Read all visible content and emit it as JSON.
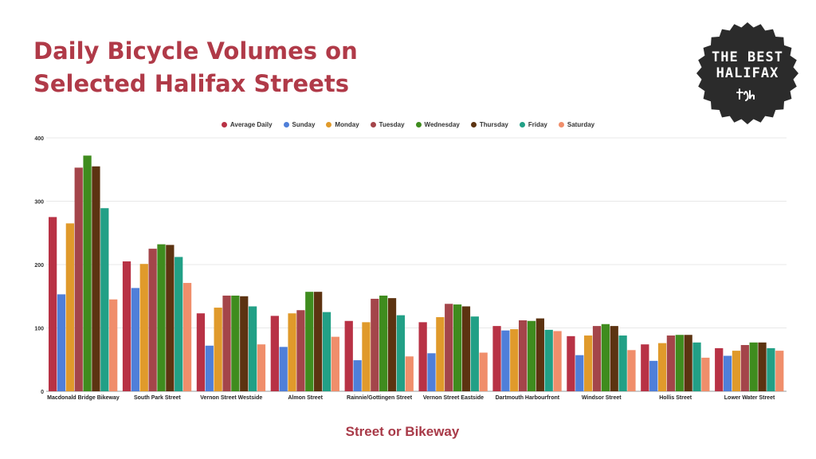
{
  "title": {
    "line1": "Daily Bicycle Volumes on",
    "line2": "Selected Halifax Streets"
  },
  "badge": {
    "line1": "THE BEST",
    "line2": "HALIFAX",
    "background_color": "#2b2b2b"
  },
  "chart_data": {
    "type": "bar",
    "xlabel": "Street or Bikeway",
    "ylabel": "",
    "ylim": [
      0,
      400
    ],
    "yticks": [
      0,
      100,
      200,
      300,
      400
    ],
    "grid": true,
    "legend_position": "top-center",
    "categories": [
      "Macdonald Bridge Bikeway",
      "South Park Street",
      "Vernon Street Westside",
      "Almon Street",
      "Rainnie/Gottingen Street",
      "Vernon Street Eastside",
      "Dartmouth Harbourfront",
      "Windsor Street",
      "Hollis Street",
      "Lower Water Street"
    ],
    "series": [
      {
        "name": "Average Daily",
        "color": "#b83245",
        "values": [
          275,
          205,
          123,
          119,
          111,
          109,
          103,
          87,
          74,
          68
        ]
      },
      {
        "name": "Sunday",
        "color": "#4f7fd9",
        "values": [
          153,
          163,
          72,
          70,
          49,
          60,
          96,
          57,
          48,
          56
        ]
      },
      {
        "name": "Monday",
        "color": "#e09a2b",
        "values": [
          265,
          201,
          132,
          123,
          109,
          117,
          98,
          88,
          76,
          64
        ]
      },
      {
        "name": "Tuesday",
        "color": "#a4454a",
        "values": [
          353,
          225,
          151,
          128,
          146,
          138,
          112,
          103,
          88,
          73
        ]
      },
      {
        "name": "Wednesday",
        "color": "#3f8c1e",
        "values": [
          372,
          232,
          151,
          157,
          151,
          137,
          111,
          106,
          89,
          77
        ]
      },
      {
        "name": "Thursday",
        "color": "#5c3311",
        "values": [
          355,
          231,
          150,
          157,
          147,
          134,
          115,
          103,
          89,
          77
        ]
      },
      {
        "name": "Friday",
        "color": "#22a086",
        "values": [
          289,
          212,
          134,
          125,
          120,
          118,
          97,
          88,
          77,
          68
        ]
      },
      {
        "name": "Saturday",
        "color": "#f08e6b",
        "values": [
          145,
          171,
          74,
          86,
          55,
          61,
          95,
          65,
          53,
          64
        ]
      }
    ]
  }
}
